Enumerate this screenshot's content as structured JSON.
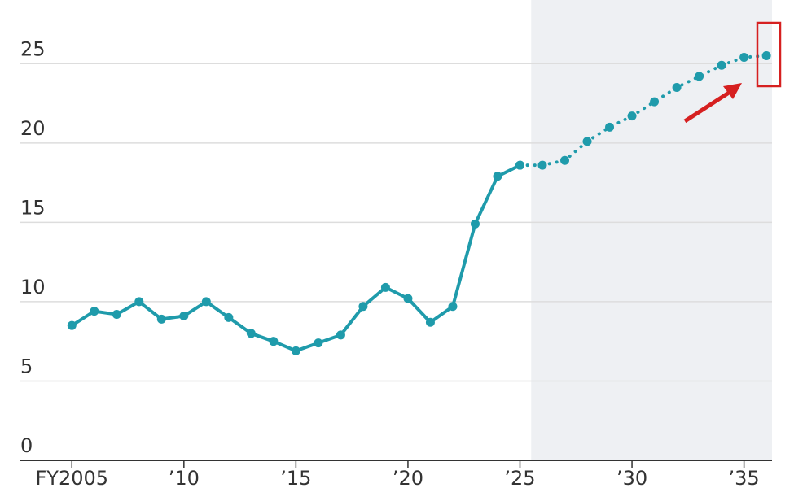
{
  "chart_data": {
    "type": "line",
    "x": [
      2005,
      2006,
      2007,
      2008,
      2009,
      2010,
      2011,
      2012,
      2013,
      2014,
      2015,
      2016,
      2017,
      2018,
      2019,
      2020,
      2021,
      2022,
      2023,
      2024,
      2025,
      2026,
      2027,
      2028,
      2029,
      2030,
      2031,
      2032,
      2033,
      2034,
      2035,
      2036
    ],
    "series": [
      {
        "color": "#1f9bab",
        "dotted": false,
        "values": [
          8.5,
          9.4,
          9.2,
          10.0,
          8.9,
          9.1,
          10.0,
          9.0,
          8.0,
          7.5,
          6.9,
          7.4,
          7.9,
          9.7,
          10.9,
          10.2,
          8.7,
          9.7,
          14.9,
          17.9,
          18.6,
          null,
          null,
          null,
          null,
          null,
          null,
          null,
          null,
          null,
          null,
          null
        ]
      },
      {
        "color": "#1f9bab",
        "dotted": true,
        "values": [
          null,
          null,
          null,
          null,
          null,
          null,
          null,
          null,
          null,
          null,
          null,
          null,
          null,
          null,
          null,
          null,
          null,
          null,
          null,
          null,
          18.6,
          18.6,
          18.9,
          20.1,
          21.0,
          21.7,
          22.6,
          23.5,
          24.2,
          24.9,
          25.4,
          25.5
        ]
      }
    ],
    "xlim": [
      2003.5,
      2036.25
    ],
    "ylim": [
      0,
      28.5
    ],
    "xticks": [
      {
        "value": 2005,
        "label": "FY2005"
      },
      {
        "value": 2010,
        "label": "’10"
      },
      {
        "value": 2015,
        "label": "’15"
      },
      {
        "value": 2020,
        "label": "’20"
      },
      {
        "value": 2025,
        "label": "’25"
      },
      {
        "value": 2030,
        "label": "’30"
      },
      {
        "value": 2035,
        "label": "’35"
      }
    ],
    "yticks": [
      0,
      5,
      10,
      15,
      20,
      25
    ],
    "grid": true,
    "forecast_shading": true
  }
}
